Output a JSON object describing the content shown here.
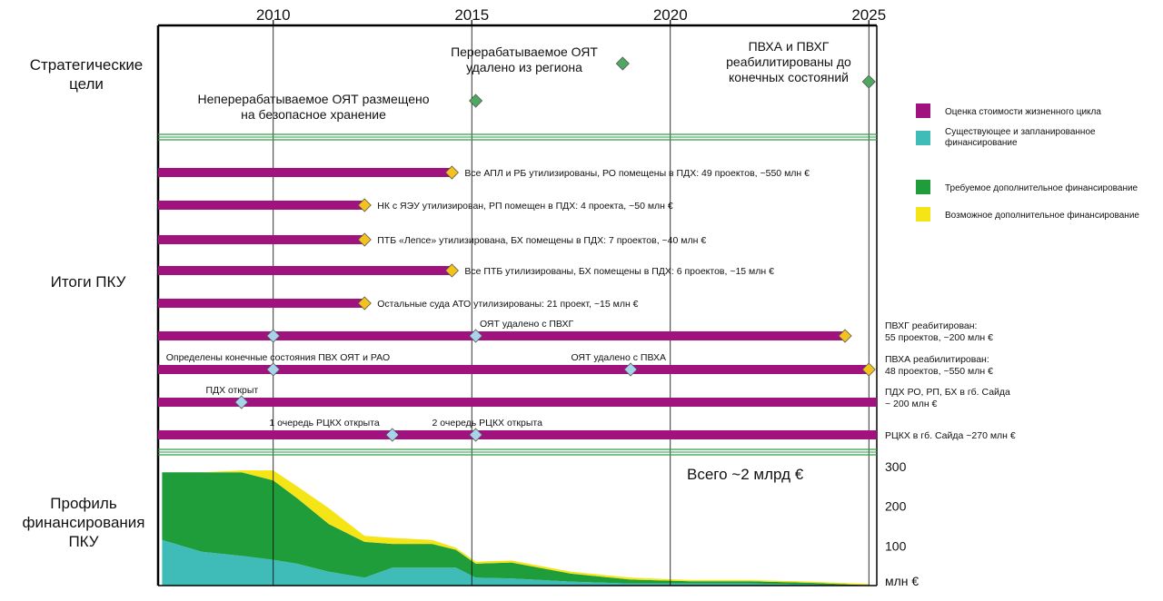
{
  "colors": {
    "bar": "#a0137f",
    "existing": "#3fbcb8",
    "required": "#1f9d3a",
    "possible": "#f5e416",
    "milestone_yellow": "#f4c21c",
    "milestone_blue": "#a9d3ea",
    "milestone_green": "#4ea860",
    "separator": "#2e9e44"
  },
  "years": [
    "2010",
    "2015",
    "2020",
    "2025"
  ],
  "sections": {
    "strategic": "Стратегические\nцели",
    "results": "Итоги ПКУ",
    "funding": "Профиль\nфинансирования\nПКУ"
  },
  "strategic_goals": [
    {
      "text": "Неперерабатываемое ОЯТ размещено\nна безопасное хранение",
      "year": 2015.1
    },
    {
      "text": "Перерабатываемое ОЯТ\nудалено из региона",
      "year": 2018.8
    },
    {
      "text": "ПВХА и ПВХГ\nреабилитированы до\nконечных состояний",
      "year": 2025.0
    }
  ],
  "legend": [
    {
      "label": "Оценка стоимости жизненного цикла",
      "color": "#a0137f"
    },
    {
      "label": "Существующее и запланированное\nфинансирование",
      "color": "#3fbcb8"
    },
    {
      "label": "Требуемое дополнительное финансирование",
      "color": "#1f9d3a"
    },
    {
      "label": "Возможное дополнительное финансирование",
      "color": "#f5e416"
    }
  ],
  "results": [
    {
      "end": 2014.5,
      "label": "Все АПЛ и РБ утилизированы, РО помещены в ПДХ: 49 проектов, ~550 млн €",
      "label_side": "right",
      "milestones": [
        {
          "year": 2014.5,
          "type": "yellow"
        }
      ],
      "annotations": []
    },
    {
      "end": 2012.3,
      "label": "НК с ЯЭУ утилизирован, РП помещен в ПДХ: 4 проекта, ~50 млн €",
      "label_side": "right",
      "milestones": [
        {
          "year": 2012.3,
          "type": "yellow"
        }
      ],
      "annotations": []
    },
    {
      "end": 2012.3,
      "label": "ПТБ «Лепсе» утилизирована, БХ помещены в ПДХ: 7 проектов, ~40 млн €",
      "label_side": "right",
      "milestones": [
        {
          "year": 2012.3,
          "type": "yellow"
        }
      ],
      "annotations": []
    },
    {
      "end": 2014.5,
      "label": "Все ПТБ утилизированы, БХ помещены в ПДХ: 6 проектов, ~15 млн €",
      "label_side": "right",
      "milestones": [
        {
          "year": 2014.5,
          "type": "yellow"
        }
      ],
      "annotations": []
    },
    {
      "end": 2012.3,
      "label": "Остальные суда АТО утилизированы: 21 проект, ~15 млн €",
      "label_side": "right",
      "milestones": [
        {
          "year": 2012.3,
          "type": "yellow"
        }
      ],
      "annotations": []
    },
    {
      "end": 2024.4,
      "label": "ПВХГ реабитирован:\n55 проектов, ~200 млн €",
      "label_side": "far",
      "milestones": [
        {
          "year": 2010.0,
          "type": "blue"
        },
        {
          "year": 2015.1,
          "type": "blue"
        },
        {
          "year": 2024.4,
          "type": "yellow"
        }
      ],
      "annotations": [
        {
          "text": "ОЯТ удалено с ПВХГ",
          "year": 2015.2
        }
      ]
    },
    {
      "end": 2025.0,
      "label": "ПВХА реабилитирован:\n48 проектов, ~550 млн €",
      "label_side": "far",
      "milestones": [
        {
          "year": 2010.0,
          "type": "blue"
        },
        {
          "year": 2019.0,
          "type": "blue"
        },
        {
          "year": 2025.0,
          "type": "yellow"
        }
      ],
      "annotations": [
        {
          "text": "Определены конечные состояния ПВХ ОЯТ и РАО",
          "year": 2007.3
        },
        {
          "text": "ОЯТ удалено с ПВХА",
          "year": 2017.5
        }
      ]
    },
    {
      "end": 2025.2,
      "label": "ПДХ РО, РП, БХ в гб. Сайда\n~ 200 млн €",
      "label_side": "far",
      "milestones": [
        {
          "year": 2009.2,
          "type": "blue"
        }
      ],
      "annotations": [
        {
          "text": "ПДХ открыт",
          "year": 2008.3
        }
      ]
    },
    {
      "end": 2025.2,
      "label": "РЦКХ в гб. Сайда ~270 млн €",
      "label_side": "far",
      "milestones": [
        {
          "year": 2013.0,
          "type": "blue"
        },
        {
          "year": 2015.1,
          "type": "blue"
        }
      ],
      "annotations": [
        {
          "text": "1 очередь РЦКХ открыта",
          "year": 2009.9
        },
        {
          "text": "2 очередь РЦКХ открыта",
          "year": 2014.0
        }
      ]
    }
  ],
  "chart_data": {
    "type": "area",
    "title": "Всего ~2 млрд €",
    "ylabel": "млн €",
    "x": [
      2007.2,
      2008.2,
      2009.2,
      2010.0,
      2010.6,
      2011.4,
      2012.3,
      2013.0,
      2014.0,
      2014.6,
      2015.1,
      2016.0,
      2017.5,
      2019.0,
      2020.5,
      2022.0,
      2023.5,
      2025.0
    ],
    "series": [
      {
        "name": "Существующее и запланированное финансирование",
        "values": [
          115,
          85,
          75,
          65,
          55,
          35,
          20,
          45,
          45,
          45,
          20,
          18,
          10,
          5,
          5,
          5,
          3,
          0
        ]
      },
      {
        "name": "Требуемое дополнительное финансирование",
        "values": [
          170,
          200,
          210,
          200,
          165,
          120,
          90,
          60,
          60,
          45,
          35,
          40,
          20,
          10,
          6,
          6,
          4,
          1
        ]
      },
      {
        "name": "Возможное дополнительное финансирование",
        "values": [
          0,
          0,
          5,
          25,
          30,
          40,
          15,
          15,
          10,
          5,
          5,
          5,
          5,
          5,
          3,
          3,
          3,
          3
        ]
      }
    ],
    "yticks": [
      100,
      200,
      300
    ],
    "ylim": [
      0,
      320
    ],
    "xlim": [
      2007.1,
      2025.2
    ]
  }
}
